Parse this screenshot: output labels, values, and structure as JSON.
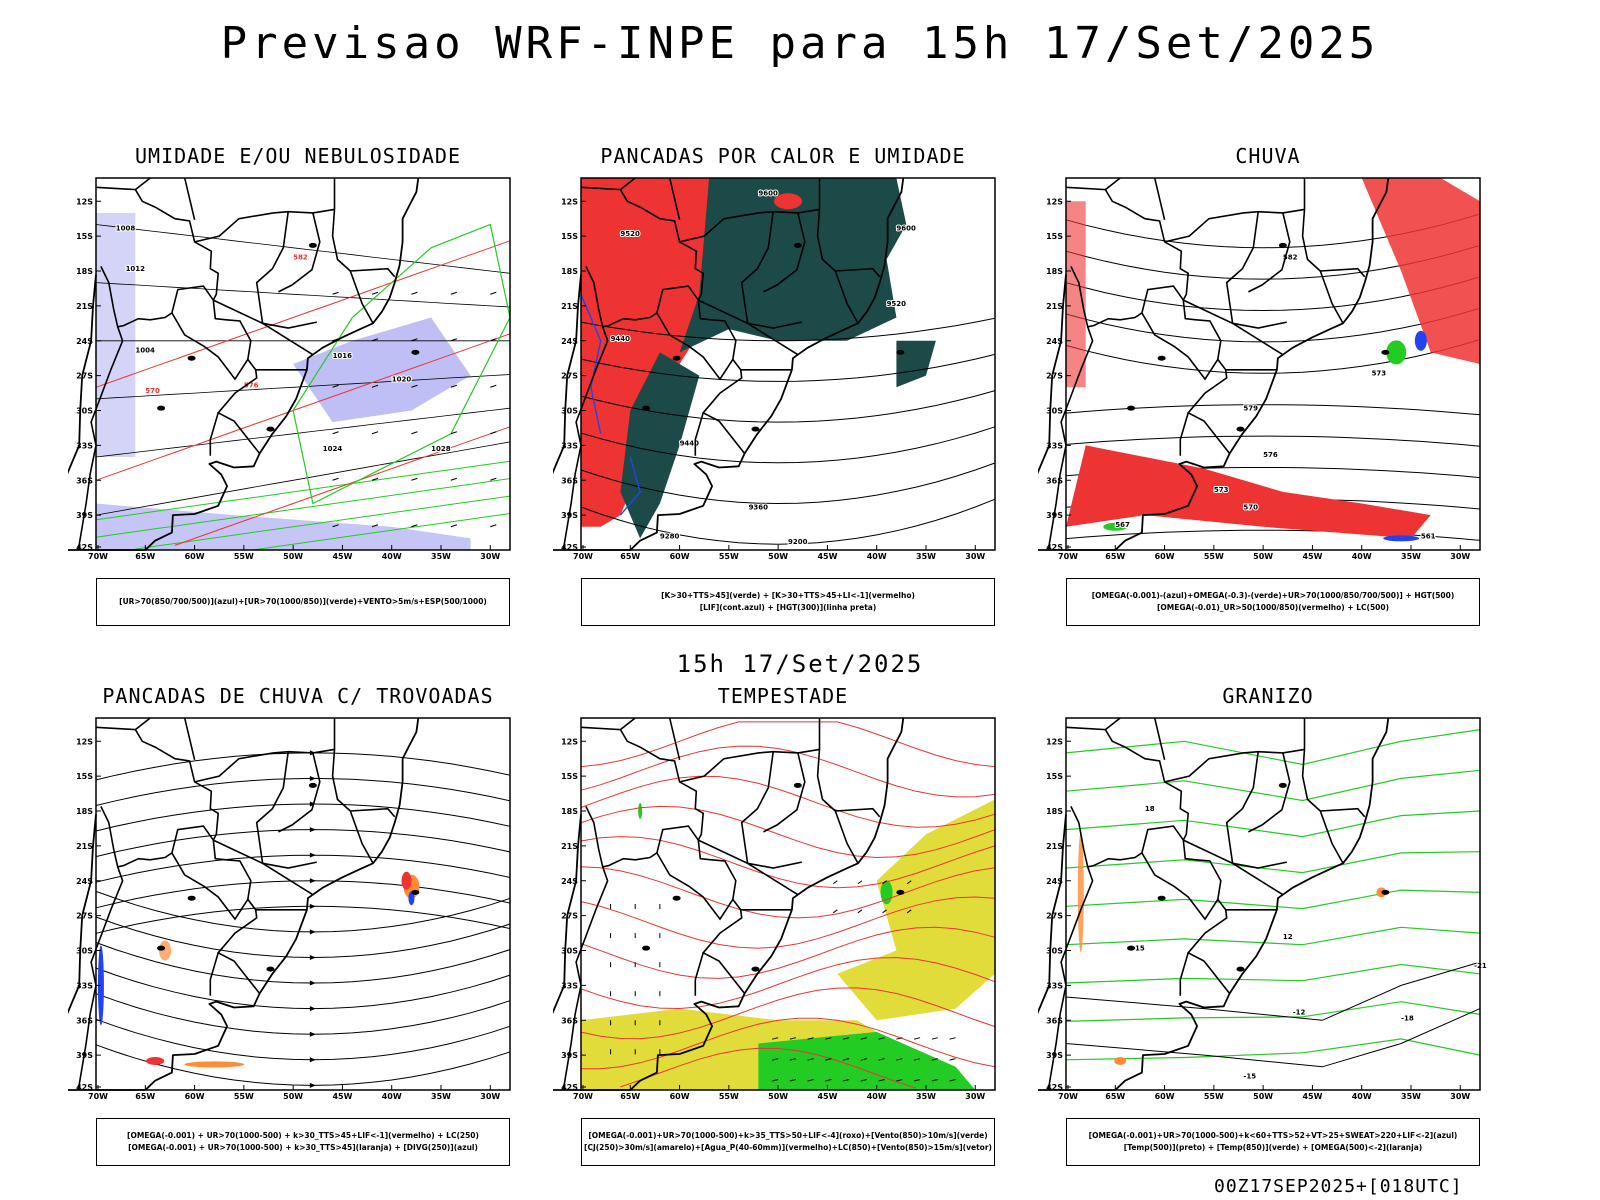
{
  "header": {
    "title": "Previsao WRF-INPE  para 15h 17/Set/2025"
  },
  "middle_label": "15h 17/Set/2025",
  "footer_label": "00Z17SEP2025+[018UTC]",
  "axes": {
    "lat_ticks": [
      "12S",
      "15S",
      "18S",
      "21S",
      "24S",
      "27S",
      "30S",
      "33S",
      "36S",
      "39S",
      "42S"
    ],
    "lon_ticks": [
      "70W",
      "65W",
      "60W",
      "55W",
      "50W",
      "45W",
      "40W",
      "35W",
      "30W"
    ]
  },
  "colors": {
    "humid_upper": "#7070e8",
    "humid_lower": "#22cc22",
    "wind": "#000000",
    "red": "#ee3333",
    "dark_teal": "#1c4a48",
    "yellow": "#e2dc3a",
    "orange": "#ff8c33",
    "blue": "#2244ee"
  },
  "panels": [
    {
      "id": "umidade",
      "title": "UMIDADE E/OU NEBULOSIDADE",
      "legend": [
        "[UR>70(850/700/500)](azul)+[UR>70(1000/850)](verde)+VENTO>5m/s+ESP(500/1000)"
      ],
      "contour_labels": [
        "1008",
        "1012",
        "1016",
        "1020",
        "1024",
        "1028",
        "1004",
        "570",
        "576",
        "582"
      ]
    },
    {
      "id": "pancadas-calor",
      "title": "PANCADAS POR CALOR E UMIDADE",
      "legend": [
        "[K>30+TTS>45](verde) + [K>30+TTS>45+LI<-1](vermelho)",
        "[LIF](cont.azul) + [HGT(300)](linha preta)"
      ],
      "contour_labels": [
        "9600",
        "9520",
        "9440",
        "9360",
        "9280",
        "9200"
      ]
    },
    {
      "id": "chuva",
      "title": "CHUVA",
      "legend": [
        "[OMEGA(-0.001)-(azul)+OMEGA(-0.3)-(verde)+UR>70(1000/850/700/500)] + HGT(500)",
        "[OMEGA(-0.01)_UR>50(1000/850)(vermelho) + LC(500)"
      ],
      "contour_labels": [
        "582",
        "579",
        "576",
        "573",
        "570",
        "567",
        "561"
      ]
    },
    {
      "id": "pancadas-trovoadas",
      "title": "PANCADAS DE CHUVA C/ TROVOADAS",
      "legend": [
        "[OMEGA(-0.001) + UR>70(1000-500) + k>30_TTS>45+LIF<-1](vermelho) + LC(250)",
        "[OMEGA(-0.001) + UR>70(1000-500) + k>30_TTS>45](laranja) + [DIVG(250)](azul)"
      ],
      "contour_labels": []
    },
    {
      "id": "tempestade",
      "title": "TEMPESTADE",
      "legend": [
        "[OMEGA(-0.001)+UR>70(1000-500)+k>35_TTS>50+LIF<-4](roxo)+[Vento(850)>10m/s](verde)",
        "[CJ(250)>30m/s](amarelo)+[Agua_P(40-60mm)](vermelho)+LC(850)+[Vento(850)>15m/s](vetor)"
      ],
      "contour_labels": []
    },
    {
      "id": "granizo",
      "title": "GRANIZO",
      "legend": [
        "[OMEGA(-0.001)+UR>70(1000-500)+k<60+TTS>52+VT>25+SWEAT>220+LIF<-2](azul)",
        "[Temp(500)](preto) + [Temp(850)](verde) + [OMEGA(500)<-2](laranja)"
      ],
      "contour_labels": [
        "-12",
        "-15",
        "-18",
        "-21",
        "15",
        "12",
        "18"
      ]
    }
  ]
}
